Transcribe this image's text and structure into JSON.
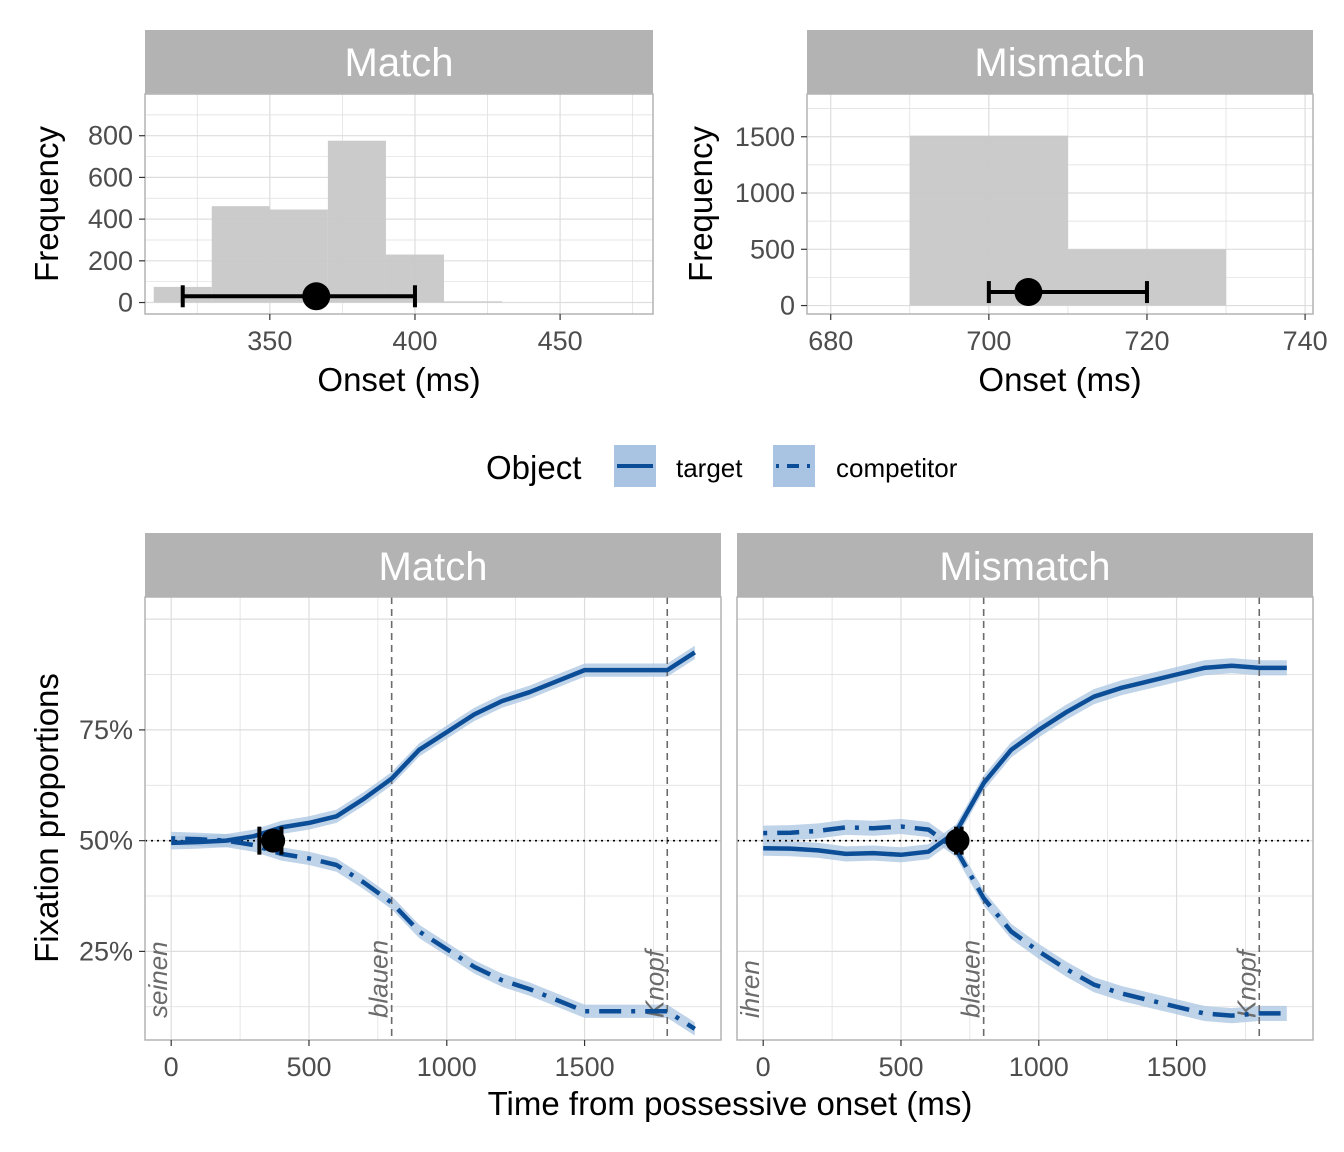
{
  "chart_data": [
    {
      "type": "bar",
      "panel": "Match",
      "xlabel": "Onset (ms)",
      "ylabel": "Frequency",
      "xlim": [
        307,
        482
      ],
      "ylim": [
        -55,
        1000
      ],
      "xticks": [
        "350",
        "400",
        "450"
      ],
      "xtick_values": [
        350,
        400,
        450
      ],
      "yticks": [
        "0",
        "200",
        "400",
        "600",
        "800"
      ],
      "ytick_values": [
        0,
        200,
        400,
        600,
        800
      ],
      "bins": [
        {
          "x0": 310,
          "x1": 330,
          "value": 75
        },
        {
          "x0": 330,
          "x1": 350,
          "value": 462
        },
        {
          "x0": 350,
          "x1": 370,
          "value": 446
        },
        {
          "x0": 370,
          "x1": 390,
          "value": 776
        },
        {
          "x0": 390,
          "x1": 410,
          "value": 230
        },
        {
          "x0": 410,
          "x1": 430,
          "value": 6
        }
      ],
      "point": {
        "x": 366,
        "y": 30
      },
      "errorbar": {
        "xmin": 320,
        "xmax": 400,
        "y": 30
      },
      "grid": true
    },
    {
      "type": "bar",
      "panel": "Mismatch",
      "xlabel": "Onset (ms)",
      "ylabel": "Frequency",
      "xlim": [
        677,
        741
      ],
      "ylim": [
        -75,
        1880
      ],
      "xticks": [
        "680",
        "700",
        "720",
        "740"
      ],
      "xtick_values": [
        680,
        700,
        720,
        740
      ],
      "yticks": [
        "0",
        "500",
        "1000",
        "1500"
      ],
      "ytick_values": [
        0,
        500,
        1000,
        1500
      ],
      "bins": [
        {
          "x0": 690,
          "x1": 710,
          "value": 1510
        },
        {
          "x0": 710,
          "x1": 730,
          "value": 500
        }
      ],
      "point": {
        "x": 705,
        "y": 120
      },
      "errorbar": {
        "xmin": 700,
        "xmax": 720,
        "y": 120
      },
      "grid": true
    },
    {
      "type": "line",
      "panel": "Match",
      "xlabel": "Time from possessive onset (ms)",
      "ylabel": "Fixation proportions",
      "xlim": [
        -95,
        1995
      ],
      "ylim": [
        0.05,
        1.05
      ],
      "xticks": [
        "0",
        "500",
        "1000",
        "1500"
      ],
      "xtick_values": [
        0,
        500,
        1000,
        1500
      ],
      "yticks": [
        "25%",
        "50%",
        "75%"
      ],
      "ytick_values": [
        0.25,
        0.5,
        0.75
      ],
      "reference_y": 0.5,
      "markers": [
        {
          "x": 0,
          "label": "seinen"
        },
        {
          "x": 800,
          "label": "blauen"
        },
        {
          "x": 1800,
          "label": "Knopf"
        }
      ],
      "point": {
        "x": 370,
        "y": 0.5
      },
      "errorbar": {
        "xmin": 320,
        "xmax": 400,
        "y": 0.5
      },
      "series": [
        {
          "name": "target",
          "line": "solid",
          "x": [
            0,
            100,
            200,
            300,
            400,
            500,
            600,
            700,
            800,
            900,
            1000,
            1100,
            1200,
            1300,
            1400,
            1500,
            1600,
            1700,
            1800,
            1900
          ],
          "values": [
            0.495,
            0.497,
            0.5,
            0.51,
            0.53,
            0.54,
            0.555,
            0.595,
            0.64,
            0.705,
            0.745,
            0.785,
            0.815,
            0.835,
            0.86,
            0.885,
            0.885,
            0.885,
            0.885,
            0.925
          ],
          "band": 0.015
        },
        {
          "name": "competitor",
          "line": "dotdash",
          "x": [
            0,
            100,
            200,
            300,
            400,
            500,
            600,
            700,
            800,
            900,
            1000,
            1100,
            1200,
            1300,
            1400,
            1500,
            1600,
            1700,
            1800,
            1900
          ],
          "values": [
            0.505,
            0.503,
            0.5,
            0.49,
            0.47,
            0.46,
            0.445,
            0.405,
            0.36,
            0.295,
            0.255,
            0.215,
            0.185,
            0.165,
            0.14,
            0.115,
            0.115,
            0.115,
            0.115,
            0.075
          ],
          "band": 0.015
        }
      ]
    },
    {
      "type": "line",
      "panel": "Mismatch",
      "xlabel": "Time from possessive onset (ms)",
      "ylabel": "Fixation proportions",
      "xlim": [
        -95,
        1995
      ],
      "ylim": [
        0.05,
        1.05
      ],
      "xticks": [
        "0",
        "500",
        "1000",
        "1500"
      ],
      "xtick_values": [
        0,
        500,
        1000,
        1500
      ],
      "yticks": [
        "25%",
        "50%",
        "75%"
      ],
      "ytick_values": [
        0.25,
        0.5,
        0.75
      ],
      "reference_y": 0.5,
      "markers": [
        {
          "x": 0,
          "label": "ihren"
        },
        {
          "x": 800,
          "label": "blauen"
        },
        {
          "x": 1800,
          "label": "Knopf"
        }
      ],
      "point": {
        "x": 705,
        "y": 0.5
      },
      "errorbar": {
        "xmin": 700,
        "xmax": 720,
        "y": 0.5
      },
      "series": [
        {
          "name": "target",
          "line": "solid",
          "x": [
            0,
            100,
            200,
            300,
            400,
            500,
            600,
            700,
            800,
            900,
            1000,
            1100,
            1200,
            1300,
            1400,
            1500,
            1600,
            1700,
            1800,
            1900
          ],
          "values": [
            0.483,
            0.482,
            0.478,
            0.47,
            0.472,
            0.468,
            0.475,
            0.52,
            0.63,
            0.705,
            0.75,
            0.79,
            0.825,
            0.845,
            0.86,
            0.875,
            0.89,
            0.895,
            0.89,
            0.89
          ],
          "band": 0.017
        },
        {
          "name": "competitor",
          "line": "dotdash",
          "x": [
            0,
            100,
            200,
            300,
            400,
            500,
            600,
            700,
            800,
            900,
            1000,
            1100,
            1200,
            1300,
            1400,
            1500,
            1600,
            1700,
            1800,
            1900
          ],
          "values": [
            0.517,
            0.518,
            0.522,
            0.53,
            0.528,
            0.532,
            0.525,
            0.48,
            0.37,
            0.295,
            0.25,
            0.21,
            0.175,
            0.155,
            0.14,
            0.125,
            0.11,
            0.105,
            0.11,
            0.11
          ],
          "band": 0.017
        }
      ]
    }
  ],
  "legend": {
    "title": "Object",
    "items": [
      {
        "label": "target",
        "line": "solid"
      },
      {
        "label": "competitor",
        "line": "dotdash"
      }
    ]
  },
  "colors": {
    "strip": "#b3b3b3",
    "histogram_fill": "#c8c8c8",
    "line": "#0b4d96",
    "band": "#a9c4e2",
    "grid": "#dddddd",
    "panel_border": "#b3b3b3",
    "marker_line": "#6b6b6b",
    "point": "#000000"
  }
}
